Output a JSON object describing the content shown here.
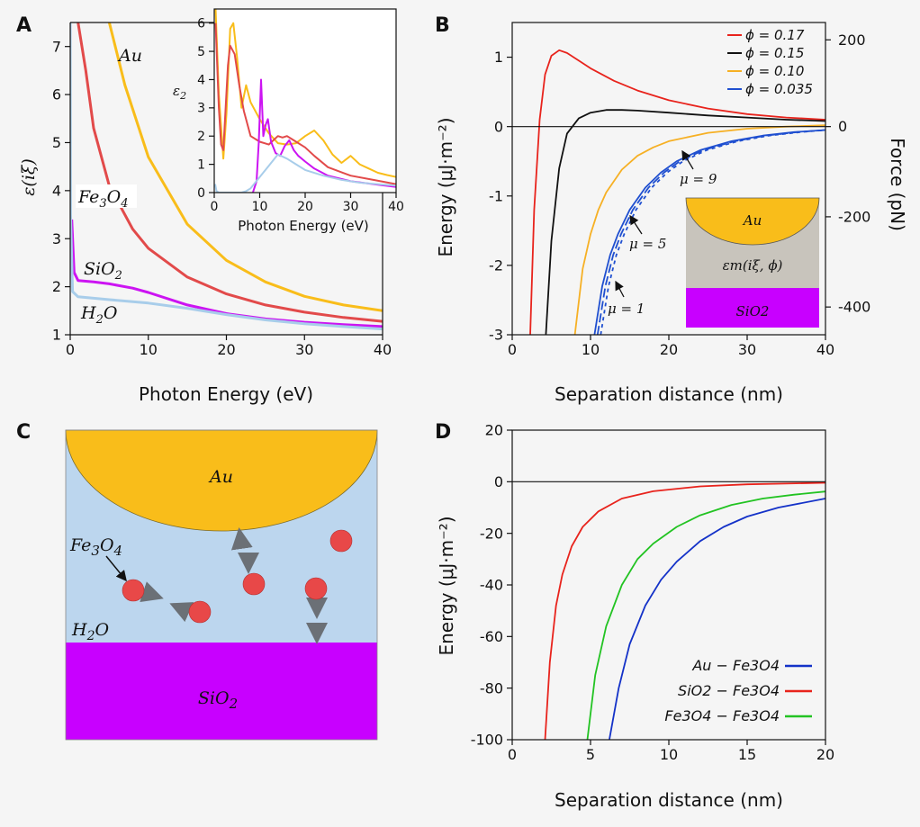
{
  "panels": {
    "a": "A",
    "b": "B",
    "c": "C",
    "d": "D"
  },
  "colors": {
    "au": "#f9bd1a",
    "fe3o4": "#e24a4a",
    "sio2": "#cc14f2",
    "h2o": "#a8cdea",
    "c017": "#e8231c",
    "c015": "#111111",
    "c010": "#f6b024",
    "c0035": "#1f4fd0",
    "aufe": "#1432c8",
    "siofe": "#e8231c",
    "fefe": "#22c322",
    "water_bg": "#bcd6ee",
    "sio2_block": "#c800ff",
    "particle": "#e84848",
    "arrow": "#6b7076",
    "medium": "#c8c4bc"
  },
  "chart_data": [
    {
      "id": "A",
      "type": "line",
      "xlabel": "Photon Energy (eV)",
      "ylabel": "ε(iξ)",
      "xlim": [
        0,
        40
      ],
      "ylim": [
        1,
        7.5
      ],
      "xticks": [
        0,
        10,
        20,
        30,
        40
      ],
      "yticks": [
        1,
        2,
        3,
        4,
        5,
        6,
        7
      ],
      "series": [
        {
          "name": "Au",
          "color_key": "au",
          "x": [
            5,
            7,
            10,
            15,
            20,
            25,
            30,
            35,
            40
          ],
          "y": [
            7.5,
            6.2,
            4.7,
            3.3,
            2.55,
            2.1,
            1.8,
            1.62,
            1.5
          ]
        },
        {
          "name": "Fe3O4",
          "color_key": "fe3o4",
          "x": [
            1,
            2,
            3,
            5,
            8,
            10,
            15,
            20,
            25,
            30,
            35,
            40
          ],
          "y": [
            7.5,
            6.5,
            5.3,
            4.1,
            3.2,
            2.8,
            2.2,
            1.85,
            1.62,
            1.47,
            1.36,
            1.28
          ]
        },
        {
          "name": "SiO2",
          "color_key": "sio2",
          "x": [
            0.2,
            0.5,
            1,
            3,
            5,
            8,
            10,
            15,
            20,
            25,
            30,
            35,
            40
          ],
          "y": [
            3.4,
            2.3,
            2.13,
            2.1,
            2.06,
            1.97,
            1.88,
            1.62,
            1.44,
            1.33,
            1.26,
            1.21,
            1.17
          ]
        },
        {
          "name": "H2O",
          "color_key": "h2o",
          "x": [
            0,
            0.05,
            0.3,
            1,
            3,
            5,
            8,
            10,
            15,
            20,
            25,
            30,
            35,
            40
          ],
          "y": [
            7.5,
            3.5,
            1.9,
            1.79,
            1.76,
            1.73,
            1.69,
            1.66,
            1.55,
            1.42,
            1.31,
            1.23,
            1.17,
            1.12
          ]
        }
      ],
      "annotations": [
        "Au",
        "Fe3O4",
        "SiO2",
        "H2O"
      ],
      "inset": {
        "type": "line",
        "xlabel": "Photon Energy (eV)",
        "ylabel": "ε2",
        "xlim": [
          0,
          40
        ],
        "ylim": [
          0,
          6.5
        ],
        "xticks": [
          0,
          10,
          20,
          30,
          40
        ],
        "yticks": [
          0,
          1,
          2,
          3,
          4,
          5,
          6
        ],
        "series": [
          {
            "name": "Au",
            "color_key": "au",
            "x": [
              0.3,
              1,
              2,
              2.7,
              3.5,
              4.2,
              5,
              6,
              7,
              8,
              10,
              12,
              14,
              16,
              18,
              20,
              22,
              24,
              26,
              28,
              30,
              32,
              34,
              36,
              38,
              40
            ],
            "y": [
              6.5,
              3.5,
              1.2,
              2.8,
              5.8,
              6.0,
              4.8,
              3.0,
              3.8,
              3.2,
              2.6,
              2.1,
              1.75,
              1.7,
              1.75,
              2.0,
              2.2,
              1.85,
              1.35,
              1.05,
              1.3,
              1.0,
              0.85,
              0.7,
              0.62,
              0.55
            ]
          },
          {
            "name": "Fe3O4",
            "color_key": "fe3o4",
            "x": [
              0.3,
              1,
              1.5,
              2,
              3,
              3.5,
              4.5,
              5.5,
              6.5,
              8,
              10,
              12,
              14,
              15,
              16,
              17,
              18,
              20,
              22,
              25,
              30,
              35,
              40
            ],
            "y": [
              6.0,
              3.0,
              1.7,
              1.5,
              4.5,
              5.2,
              4.9,
              3.8,
              2.9,
              2.0,
              1.8,
              1.7,
              2.0,
              1.95,
              2.0,
              1.9,
              1.8,
              1.6,
              1.3,
              0.9,
              0.6,
              0.45,
              0.3
            ]
          },
          {
            "name": "SiO2",
            "color_key": "sio2",
            "x": [
              8.5,
              9.3,
              9.8,
              10.3,
              10.8,
              11.3,
              11.8,
              12.5,
              13.5,
              14.5,
              15.5,
              16.5,
              17.5,
              18.5,
              20,
              22,
              25,
              30,
              35,
              40
            ],
            "y": [
              0,
              0.4,
              1.8,
              4.0,
              2.0,
              2.4,
              2.6,
              1.8,
              1.4,
              1.3,
              1.65,
              1.85,
              1.5,
              1.3,
              1.1,
              0.85,
              0.6,
              0.4,
              0.3,
              0.2
            ]
          },
          {
            "name": "H2O",
            "color_key": "h2o",
            "x": [
              0.2,
              0.5,
              1,
              2,
              4,
              6,
              7,
              8,
              10,
              12,
              14,
              16,
              18,
              20,
              24,
              28,
              32,
              36,
              40
            ],
            "y": [
              0.3,
              0.05,
              0,
              0,
              0,
              0,
              0.05,
              0.15,
              0.55,
              0.95,
              1.35,
              1.2,
              1.0,
              0.8,
              0.6,
              0.45,
              0.35,
              0.3,
              0.25
            ]
          }
        ]
      }
    },
    {
      "id": "B",
      "type": "line",
      "xlabel": "Separation distance (nm)",
      "ylabel": "Energy (μJ·m⁻²)",
      "y2label": "Force (pN)",
      "xlim": [
        0,
        40
      ],
      "ylim": [
        -3,
        1.5
      ],
      "xticks": [
        0,
        10,
        20,
        30,
        40
      ],
      "yticks": [
        -3,
        -2,
        -1,
        0,
        1
      ],
      "y2ticks": [
        {
          "label": "200",
          "at": 1.25
        },
        {
          "label": "0",
          "at": 0
        },
        {
          "label": "-200",
          "at": -1.3
        },
        {
          "label": "-400",
          "at": -2.6
        }
      ],
      "legend_position": "top-right",
      "series": [
        {
          "name": "ϕ = 0.17",
          "color_key": "c017",
          "x": [
            2.3,
            2.8,
            3.5,
            4.2,
            5,
            6,
            7,
            8.5,
            10,
            13,
            16,
            20,
            25,
            30,
            35,
            40
          ],
          "y": [
            -3,
            -1.2,
            0.1,
            0.75,
            1.02,
            1.1,
            1.06,
            0.95,
            0.84,
            0.66,
            0.52,
            0.38,
            0.26,
            0.18,
            0.13,
            0.1
          ]
        },
        {
          "name": "ϕ = 0.15",
          "color_key": "c015",
          "x": [
            4.3,
            5,
            6,
            7,
            8.5,
            10,
            12,
            14,
            16,
            20,
            25,
            30,
            35,
            40
          ],
          "y": [
            -3,
            -1.65,
            -0.6,
            -0.1,
            0.12,
            0.2,
            0.24,
            0.24,
            0.23,
            0.2,
            0.16,
            0.13,
            0.1,
            0.08
          ]
        },
        {
          "name": "ϕ = 0.10",
          "color_key": "c010",
          "x": [
            8,
            9,
            10,
            11,
            12,
            14,
            16,
            18,
            20,
            25,
            30,
            35,
            40
          ],
          "y": [
            -3,
            -2.05,
            -1.55,
            -1.2,
            -0.95,
            -0.62,
            -0.42,
            -0.3,
            -0.21,
            -0.09,
            -0.03,
            0.0,
            0.02
          ]
        },
        {
          "name": "ϕ = 0.035",
          "color_key": "c0035",
          "dash": "",
          "label": "μ = 1",
          "x": [
            10.5,
            11.5,
            12.5,
            13.5,
            15,
            17,
            19,
            21,
            24,
            28,
            32,
            36,
            40
          ],
          "y": [
            -3,
            -2.3,
            -1.85,
            -1.55,
            -1.2,
            -0.88,
            -0.66,
            -0.5,
            -0.34,
            -0.21,
            -0.13,
            -0.08,
            -0.05
          ]
        },
        {
          "name": "",
          "color_key": "c0035",
          "dash": "10 4",
          "label": "μ = 5",
          "x": [
            10.9,
            11.9,
            12.9,
            13.9,
            15.4,
            17.4,
            19.4,
            21.4,
            24.4,
            28.4,
            32.4,
            36.4,
            40
          ],
          "y": [
            -3,
            -2.3,
            -1.85,
            -1.55,
            -1.2,
            -0.88,
            -0.66,
            -0.5,
            -0.34,
            -0.21,
            -0.13,
            -0.08,
            -0.05
          ]
        },
        {
          "name": "",
          "color_key": "c0035",
          "dash": "4 4",
          "label": "μ = 9",
          "x": [
            11.3,
            12.3,
            13.3,
            14.3,
            15.8,
            17.8,
            19.8,
            21.8,
            24.8,
            28.8,
            32.8,
            36.8,
            40
          ],
          "y": [
            -3,
            -2.3,
            -1.85,
            -1.55,
            -1.2,
            -0.88,
            -0.66,
            -0.5,
            -0.34,
            -0.21,
            -0.13,
            -0.08,
            -0.05
          ]
        }
      ],
      "inset_labels": {
        "top": "Au",
        "middle": "εm(iξ, ϕ)",
        "bottom": "SiO2"
      },
      "mu_labels": [
        "μ = 9",
        "μ = 5",
        "μ = 1"
      ]
    },
    {
      "id": "D",
      "type": "line",
      "xlabel": "Separation distance (nm)",
      "ylabel": "Energy (μJ·m⁻²)",
      "xlim": [
        0,
        20
      ],
      "ylim": [
        -100,
        20
      ],
      "xticks": [
        0,
        5,
        10,
        15,
        20
      ],
      "yticks": [
        -100,
        -80,
        -60,
        -40,
        -20,
        0,
        20
      ],
      "legend_position": "bottom-right",
      "series": [
        {
          "name": "Au − Fe3O4",
          "color_key": "aufe",
          "x": [
            6.2,
            6.8,
            7.5,
            8.5,
            9.5,
            10.5,
            12,
            13.5,
            15,
            17,
            20
          ],
          "y": [
            -100,
            -80,
            -63,
            -48,
            -38,
            -31,
            -23,
            -17.5,
            -13.5,
            -10,
            -6.5
          ]
        },
        {
          "name": "SiO2 − Fe3O4",
          "color_key": "siofe",
          "x": [
            2.1,
            2.4,
            2.8,
            3.2,
            3.8,
            4.5,
            5.5,
            7,
            9,
            12,
            15,
            20
          ],
          "y": [
            -100,
            -70,
            -48,
            -36,
            -25,
            -17.5,
            -11.5,
            -6.5,
            -3.7,
            -1.8,
            -1.0,
            -0.4
          ]
        },
        {
          "name": "Fe3O4 − Fe3O4",
          "color_key": "fefe",
          "x": [
            4.8,
            5.3,
            6,
            7,
            8,
            9,
            10.5,
            12,
            14,
            16,
            18,
            20
          ],
          "y": [
            -100,
            -75,
            -56,
            -40,
            -30,
            -24,
            -17.5,
            -13,
            -9,
            -6.5,
            -5,
            -3.8
          ]
        }
      ]
    }
  ],
  "schematic_c": {
    "labels": {
      "au": "Au",
      "fe3o4": "Fe3O4",
      "h2o": "H2O",
      "sio2": "SiO2"
    }
  }
}
